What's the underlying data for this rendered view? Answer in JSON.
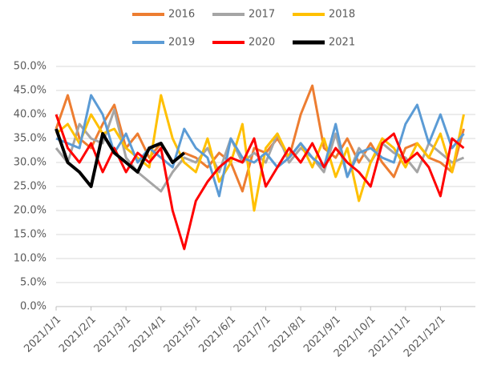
{
  "chart_data": {
    "type": "line",
    "legend": "top",
    "grid": true,
    "categories": [
      "2021/1/1",
      null,
      null,
      "2021/2/1",
      null,
      null,
      "2021/3/1",
      null,
      null,
      "2021/4/1",
      null,
      null,
      "2021/5/1",
      null,
      null,
      "2021/6/1",
      null,
      null,
      "2021/7/1",
      null,
      null,
      "2021/8/1",
      null,
      null,
      "2021/9/1",
      null,
      null,
      "2021/10/1",
      null,
      null,
      "2021/11/1",
      null,
      null,
      "2021/12/1",
      null,
      null
    ],
    "ylim": [
      0,
      50
    ],
    "yticks": [
      {
        "value": 0,
        "label": "0.0%"
      },
      {
        "value": 5,
        "label": "5.0%"
      },
      {
        "value": 10,
        "label": "10.0%"
      },
      {
        "value": 15,
        "label": "15.0%"
      },
      {
        "value": 20,
        "label": "20.0%"
      },
      {
        "value": 25,
        "label": "25.0%"
      },
      {
        "value": 30,
        "label": "30.0%"
      },
      {
        "value": 35,
        "label": "35.0%"
      },
      {
        "value": 40,
        "label": "40.0%"
      },
      {
        "value": 45,
        "label": "45.0%"
      },
      {
        "value": 50,
        "label": "50.0%"
      }
    ],
    "series": [
      {
        "name": "2016",
        "color": "#ED7D31",
        "values": [
          37,
          44,
          35,
          33,
          38,
          42,
          33,
          36,
          31,
          34,
          30,
          32,
          31,
          29,
          32,
          30,
          24,
          33,
          32,
          35,
          31,
          40,
          46,
          33,
          31,
          35,
          30,
          34,
          30,
          27,
          33,
          34,
          31,
          30,
          28,
          37
        ]
      },
      {
        "name": "2017",
        "color": "#A5A5A5",
        "values": [
          33,
          30,
          38,
          35,
          34,
          41,
          31,
          28,
          26,
          24,
          28,
          31,
          30,
          33,
          28,
          35,
          30,
          32,
          30,
          36,
          30,
          33,
          31,
          28,
          36,
          27,
          33,
          30,
          34,
          32,
          31,
          28,
          34,
          32,
          30,
          31
        ]
      },
      {
        "name": "2018",
        "color": "#FFC000",
        "values": [
          36,
          38,
          34,
          40,
          36,
          37,
          33,
          31,
          29,
          44,
          35,
          30,
          28,
          35,
          26,
          30,
          38,
          20,
          33,
          36,
          31,
          34,
          29,
          35,
          27,
          33,
          22,
          30,
          35,
          33,
          29,
          34,
          31,
          36,
          28,
          40
        ]
      },
      {
        "name": "2019",
        "color": "#5B9BD5",
        "values": [
          35,
          34,
          33,
          44,
          40,
          32,
          36,
          30,
          33,
          31,
          29,
          37,
          33,
          31,
          23,
          35,
          31,
          30,
          32,
          29,
          31,
          34,
          31,
          29,
          38,
          27,
          32,
          33,
          31,
          30,
          38,
          42,
          34,
          40,
          33,
          36
        ]
      },
      {
        "name": "2020",
        "color": "#FF0000",
        "values": [
          40,
          33,
          30,
          34,
          28,
          33,
          28,
          32,
          30,
          33,
          20,
          12,
          22,
          26,
          29,
          31,
          30,
          35,
          25,
          29,
          33,
          30,
          34,
          29,
          33,
          30,
          28,
          25,
          34,
          36,
          30,
          32,
          29,
          23,
          35,
          33
        ]
      },
      {
        "name": "2021",
        "color": "#000000",
        "values": [
          37,
          30,
          28,
          25,
          36,
          32,
          30,
          28,
          33,
          34,
          30,
          32,
          null,
          null,
          null,
          null,
          null,
          null,
          null,
          null,
          null,
          null,
          null,
          null,
          null,
          null,
          null,
          null,
          null,
          null,
          null,
          null,
          null,
          null,
          null,
          null
        ]
      }
    ]
  }
}
